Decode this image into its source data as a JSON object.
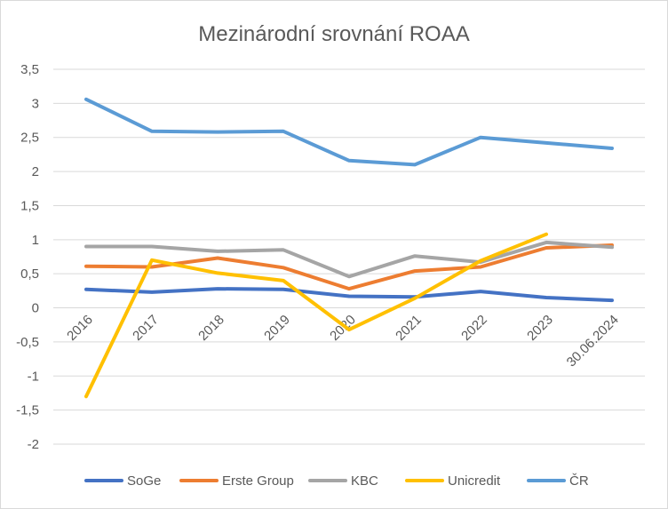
{
  "chart_data": {
    "type": "line",
    "title": "Mezinárodní srovnání ROAA",
    "xlabel": "",
    "ylabel": "",
    "categories": [
      "2016",
      "2017",
      "2018",
      "2019",
      "2020",
      "2021",
      "2022",
      "2023",
      "30.06.2024"
    ],
    "ylim": [
      -2,
      3.5
    ],
    "yticks": [
      "3,5",
      "3",
      "2,5",
      "2",
      "1,5",
      "1",
      "0,5",
      "0",
      "-0,5",
      "-1",
      "-1,5",
      "-2"
    ],
    "ytick_values": [
      3.5,
      3,
      2.5,
      2,
      1.5,
      1,
      0.5,
      0,
      -0.5,
      -1,
      -1.5,
      -2
    ],
    "grid": true,
    "legend_position": "bottom",
    "series": [
      {
        "name": "SoGe",
        "color": "#4472c4",
        "values": [
          0.27,
          0.23,
          0.28,
          0.27,
          0.17,
          0.16,
          0.24,
          0.15,
          0.11
        ]
      },
      {
        "name": "Erste Group",
        "color": "#ed7d31",
        "values": [
          0.61,
          0.6,
          0.73,
          0.59,
          0.28,
          0.54,
          0.6,
          0.88,
          0.92
        ]
      },
      {
        "name": "KBC",
        "color": "#a5a5a5",
        "values": [
          0.9,
          0.9,
          0.83,
          0.85,
          0.46,
          0.76,
          0.67,
          0.96,
          0.89
        ]
      },
      {
        "name": "Unicredit",
        "color": "#ffc000",
        "values": [
          -1.3,
          0.7,
          0.51,
          0.4,
          -0.32,
          0.14,
          0.69,
          1.08,
          null
        ]
      },
      {
        "name": "ČR",
        "color": "#5b9bd5",
        "values": [
          3.06,
          2.59,
          2.58,
          2.59,
          2.16,
          2.1,
          2.5,
          2.42,
          2.34
        ]
      }
    ]
  }
}
